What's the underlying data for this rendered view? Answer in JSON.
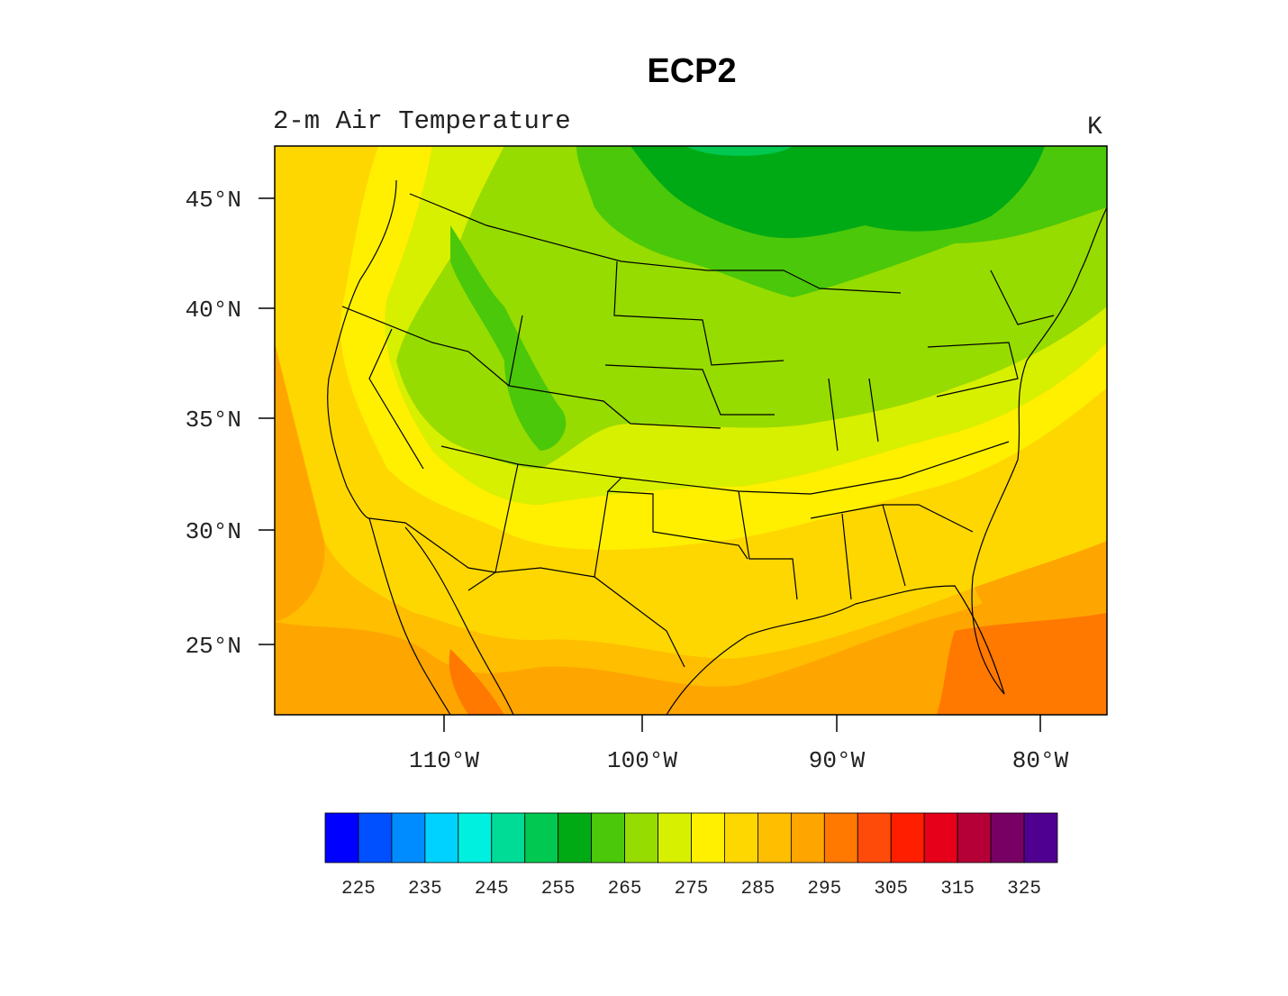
{
  "title": "ECP2",
  "subtitle": "2-m Air Temperature",
  "units": "K",
  "map": {
    "lat_ticks": [
      {
        "value": 45,
        "label": "45°N"
      },
      {
        "value": 40,
        "label": "40°N"
      },
      {
        "value": 35,
        "label": "35°N"
      },
      {
        "value": 30,
        "label": "30°N"
      },
      {
        "value": 25,
        "label": "25°N"
      }
    ],
    "lon_ticks": [
      {
        "value": -110,
        "label": "110°W"
      },
      {
        "value": -100,
        "label": "100°W"
      },
      {
        "value": -90,
        "label": "90°W"
      },
      {
        "value": -80,
        "label": "80°W"
      }
    ]
  },
  "colorbar": {
    "colors": [
      "#0000ff",
      "#0050ff",
      "#008cff",
      "#00d2ff",
      "#00f0e0",
      "#00dc96",
      "#00c850",
      "#00aa14",
      "#4bc80a",
      "#96dc00",
      "#d7f000",
      "#fff000",
      "#ffd700",
      "#ffbe00",
      "#ffa500",
      "#ff7800",
      "#ff4b0a",
      "#ff1e00",
      "#e60019",
      "#b40037",
      "#780064",
      "#500091"
    ],
    "labels": [
      "225",
      "235",
      "245",
      "255",
      "265",
      "275",
      "285",
      "295",
      "305",
      "315",
      "325"
    ]
  }
}
